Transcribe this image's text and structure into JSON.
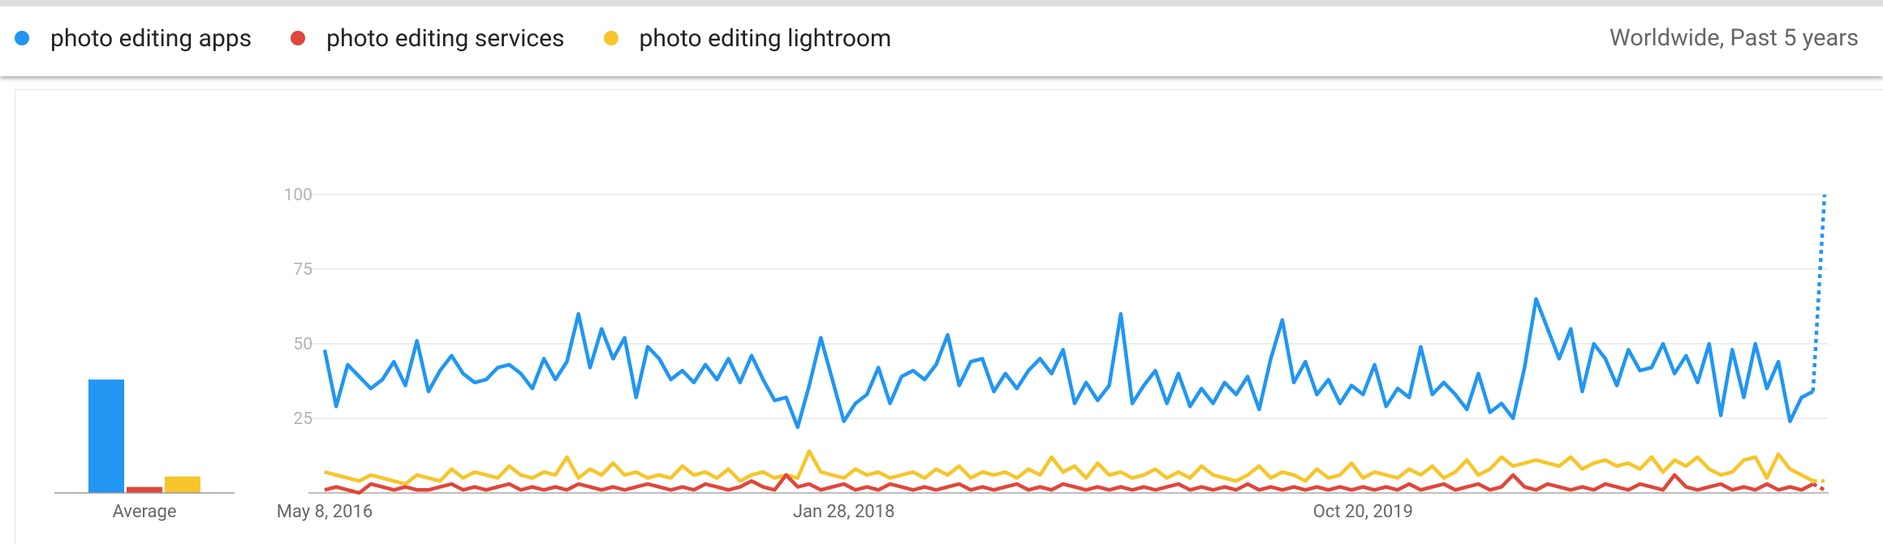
{
  "header": {
    "scope": "Worldwide, Past 5 years"
  },
  "chart_data": [
    {
      "type": "bar",
      "categories": [
        "Average"
      ],
      "ylim": [
        0,
        100
      ],
      "series": [
        {
          "color": "#2196f3",
          "values": [
            38
          ]
        },
        {
          "color": "#e0463a",
          "values": [
            2
          ]
        },
        {
          "color": "#f7c52b",
          "values": [
            5.5
          ]
        }
      ]
    },
    {
      "type": "line",
      "ylim": [
        0,
        100
      ],
      "yticks": [
        25,
        50,
        75,
        100
      ],
      "grid": true,
      "partial_last": true,
      "categories": [
        "May 8, 2016",
        null,
        null,
        null,
        null,
        null,
        null,
        null,
        null,
        null,
        null,
        null,
        null,
        null,
        null,
        null,
        null,
        null,
        null,
        null,
        null,
        null,
        null,
        null,
        null,
        null,
        null,
        null,
        null,
        null,
        null,
        null,
        null,
        null,
        null,
        null,
        null,
        null,
        null,
        null,
        null,
        null,
        null,
        null,
        null,
        "Jan 28, 2018",
        null,
        null,
        null,
        null,
        null,
        null,
        null,
        null,
        null,
        null,
        null,
        null,
        null,
        null,
        null,
        null,
        null,
        null,
        null,
        null,
        null,
        null,
        null,
        null,
        null,
        null,
        null,
        null,
        null,
        null,
        null,
        null,
        null,
        null,
        null,
        null,
        null,
        null,
        null,
        null,
        null,
        null,
        null,
        null,
        "Oct 20, 2019",
        null,
        null,
        null,
        null,
        null,
        null,
        null,
        null,
        null,
        null,
        null,
        null,
        null,
        null,
        null,
        null,
        null,
        null,
        null,
        null,
        null,
        null,
        null,
        null,
        null,
        null,
        null,
        null,
        null,
        null,
        null,
        null,
        null,
        null,
        null,
        null,
        null,
        null,
        null,
        null
      ],
      "series": [
        {
          "name": "photo editing apps",
          "color": "#2196f3",
          "values": [
            48,
            29,
            43,
            39,
            35,
            38,
            44,
            36,
            51,
            34,
            41,
            46,
            40,
            37,
            38,
            42,
            43,
            40,
            35,
            45,
            38,
            44,
            60,
            42,
            55,
            45,
            52,
            32,
            49,
            45,
            38,
            41,
            37,
            43,
            38,
            45,
            37,
            46,
            38,
            31,
            32,
            22,
            36,
            52,
            38,
            24,
            30,
            33,
            42,
            30,
            39,
            41,
            38,
            43,
            53,
            36,
            44,
            45,
            34,
            40,
            35,
            41,
            45,
            40,
            48,
            30,
            37,
            31,
            36,
            60,
            30,
            36,
            41,
            30,
            40,
            29,
            35,
            30,
            37,
            33,
            39,
            28,
            45,
            58,
            37,
            44,
            33,
            38,
            30,
            36,
            33,
            43,
            29,
            35,
            32,
            49,
            33,
            37,
            33,
            28,
            40,
            27,
            30,
            25,
            42,
            65,
            55,
            45,
            55,
            34,
            50,
            45,
            36,
            48,
            41,
            42,
            50,
            40,
            46,
            37,
            50,
            26,
            48,
            32,
            50,
            35,
            44,
            24,
            32,
            34,
            100
          ]
        },
        {
          "name": "photo editing services",
          "color": "#e0463a",
          "values": [
            1,
            2,
            1,
            0,
            3,
            2,
            1,
            2,
            1,
            1,
            2,
            3,
            1,
            2,
            1,
            2,
            3,
            1,
            2,
            1,
            2,
            1,
            3,
            2,
            1,
            2,
            1,
            2,
            3,
            2,
            1,
            2,
            1,
            3,
            2,
            1,
            2,
            4,
            2,
            1,
            6,
            2,
            3,
            1,
            2,
            3,
            1,
            2,
            1,
            3,
            2,
            1,
            2,
            1,
            2,
            3,
            1,
            2,
            1,
            2,
            3,
            1,
            2,
            1,
            3,
            2,
            1,
            2,
            1,
            2,
            1,
            2,
            1,
            2,
            3,
            1,
            2,
            1,
            2,
            1,
            3,
            1,
            2,
            1,
            2,
            1,
            2,
            1,
            2,
            1,
            2,
            1,
            2,
            1,
            3,
            1,
            2,
            3,
            1,
            2,
            3,
            1,
            2,
            6,
            2,
            1,
            3,
            2,
            1,
            2,
            1,
            3,
            2,
            1,
            3,
            2,
            1,
            6,
            2,
            1,
            2,
            3,
            1,
            2,
            1,
            3,
            1,
            2,
            1,
            3,
            1
          ]
        },
        {
          "name": "photo editing lightroom",
          "color": "#f7c52b",
          "values": [
            7,
            6,
            5,
            4,
            6,
            5,
            4,
            3,
            6,
            5,
            4,
            8,
            5,
            7,
            6,
            5,
            9,
            6,
            5,
            7,
            6,
            12,
            5,
            8,
            6,
            10,
            6,
            7,
            5,
            6,
            5,
            9,
            6,
            7,
            5,
            8,
            4,
            6,
            7,
            5,
            6,
            5,
            14,
            7,
            6,
            5,
            8,
            6,
            7,
            5,
            6,
            7,
            5,
            8,
            6,
            9,
            5,
            7,
            6,
            7,
            5,
            8,
            6,
            12,
            7,
            9,
            5,
            10,
            6,
            7,
            5,
            6,
            8,
            5,
            7,
            5,
            9,
            6,
            5,
            4,
            6,
            9,
            5,
            7,
            6,
            4,
            8,
            5,
            6,
            10,
            5,
            7,
            6,
            5,
            8,
            6,
            9,
            5,
            7,
            11,
            6,
            8,
            12,
            9,
            10,
            11,
            10,
            9,
            12,
            8,
            10,
            11,
            9,
            10,
            8,
            12,
            7,
            11,
            9,
            12,
            8,
            6,
            7,
            11,
            12,
            5,
            13,
            8,
            6,
            4,
            4
          ]
        }
      ]
    }
  ]
}
